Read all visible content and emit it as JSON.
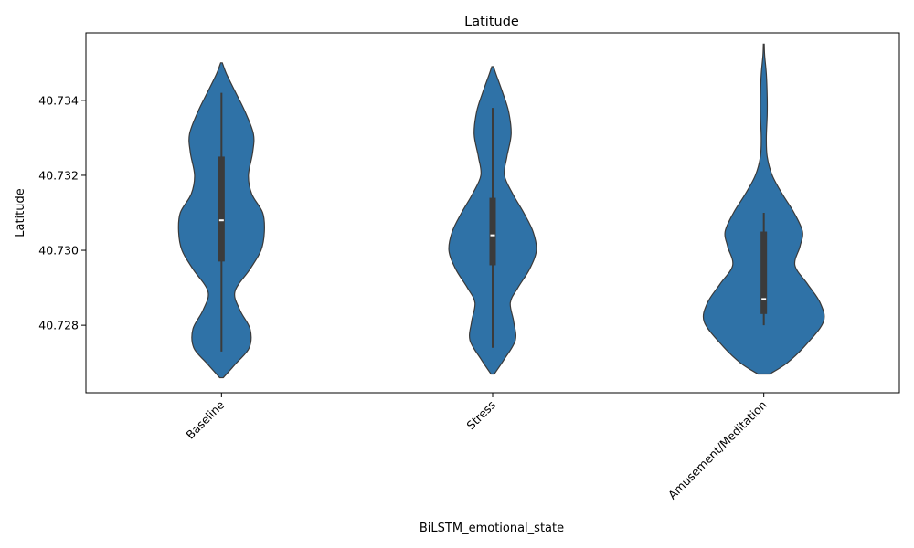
{
  "chart_data": {
    "type": "violin",
    "title": "Latitude",
    "xlabel": "BiLSTM_emotional_state",
    "ylabel": "Latitude",
    "ylim": [
      40.7262,
      40.7358
    ],
    "yticks": [
      "40.728",
      "40.730",
      "40.732",
      "40.734"
    ],
    "ytick_values": [
      40.728,
      40.73,
      40.732,
      40.734
    ],
    "categories": [
      "Baseline",
      "Stress",
      "Amusement/Meditation"
    ],
    "color": "#2f72a7",
    "violins": [
      {
        "category": "Baseline",
        "y_min": 40.7266,
        "y_max": 40.735,
        "whisker_low": 40.7273,
        "whisker_high": 40.7342,
        "q1": 40.7297,
        "median": 40.7308,
        "q3": 40.7325,
        "profile": [
          [
            40.7266,
            0.02
          ],
          [
            40.727,
            0.18
          ],
          [
            40.7274,
            0.33
          ],
          [
            40.7279,
            0.34
          ],
          [
            40.7284,
            0.22
          ],
          [
            40.7289,
            0.16
          ],
          [
            40.7295,
            0.34
          ],
          [
            40.73,
            0.47
          ],
          [
            40.7305,
            0.51
          ],
          [
            40.731,
            0.49
          ],
          [
            40.7315,
            0.36
          ],
          [
            40.732,
            0.32
          ],
          [
            40.7326,
            0.37
          ],
          [
            40.7331,
            0.38
          ],
          [
            40.7337,
            0.28
          ],
          [
            40.7342,
            0.17
          ],
          [
            40.7347,
            0.06
          ],
          [
            40.735,
            0.01
          ]
        ]
      },
      {
        "category": "Stress",
        "y_min": 40.7267,
        "y_max": 40.7349,
        "whisker_low": 40.7274,
        "whisker_high": 40.7338,
        "q1": 40.7296,
        "median": 40.7304,
        "q3": 40.7314,
        "profile": [
          [
            40.7267,
            0.02
          ],
          [
            40.7271,
            0.14
          ],
          [
            40.7276,
            0.27
          ],
          [
            40.7281,
            0.25
          ],
          [
            40.7286,
            0.21
          ],
          [
            40.729,
            0.3
          ],
          [
            40.7295,
            0.44
          ],
          [
            40.73,
            0.52
          ],
          [
            40.7305,
            0.48
          ],
          [
            40.731,
            0.37
          ],
          [
            40.7315,
            0.24
          ],
          [
            40.732,
            0.14
          ],
          [
            40.7325,
            0.17
          ],
          [
            40.7331,
            0.22
          ],
          [
            40.7337,
            0.19
          ],
          [
            40.7342,
            0.12
          ],
          [
            40.7347,
            0.04
          ],
          [
            40.7349,
            0.01
          ]
        ]
      },
      {
        "category": "Amusement/Meditation",
        "y_min": 40.7267,
        "y_max": 40.7355,
        "whisker_low": 40.728,
        "whisker_high": 40.731,
        "q1": 40.7283,
        "median": 40.7287,
        "q3": 40.7305,
        "profile": [
          [
            40.7267,
            0.07
          ],
          [
            40.727,
            0.28
          ],
          [
            40.7275,
            0.51
          ],
          [
            40.7281,
            0.71
          ],
          [
            40.7286,
            0.67
          ],
          [
            40.7291,
            0.52
          ],
          [
            40.7296,
            0.37
          ],
          [
            40.7301,
            0.43
          ],
          [
            40.7305,
            0.46
          ],
          [
            40.731,
            0.36
          ],
          [
            40.7315,
            0.22
          ],
          [
            40.732,
            0.1
          ],
          [
            40.7325,
            0.04
          ],
          [
            40.733,
            0.03
          ],
          [
            40.7336,
            0.04
          ],
          [
            40.7341,
            0.04
          ],
          [
            40.7347,
            0.03
          ],
          [
            40.7352,
            0.01
          ],
          [
            40.7355,
            0.005
          ]
        ]
      }
    ]
  }
}
